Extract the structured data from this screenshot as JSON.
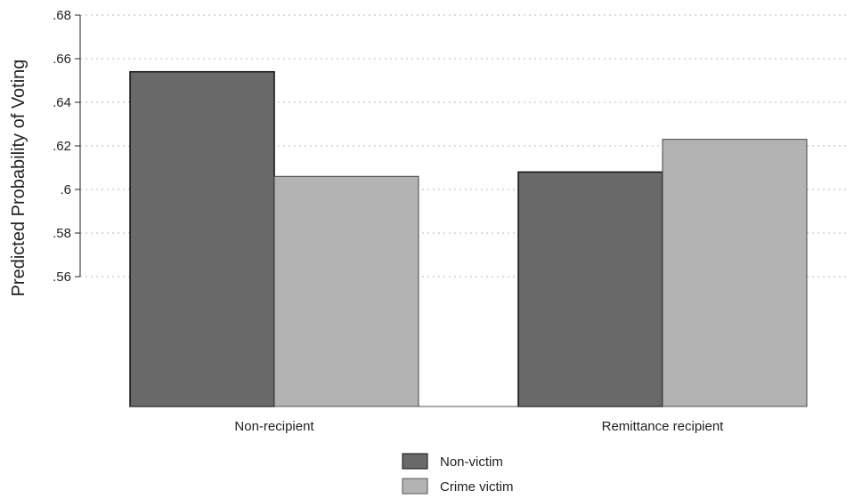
{
  "chart_data": {
    "type": "bar",
    "title": "",
    "xlabel": "",
    "ylabel": "Predicted Probability of Voting",
    "categories": [
      "Non-recipient",
      "Remittance recipient"
    ],
    "series": [
      {
        "name": "Non-victim",
        "values": [
          0.654,
          0.608
        ],
        "color": "#696969"
      },
      {
        "name": "Crime victim",
        "values": [
          0.606,
          0.623
        ],
        "color": "#b3b3b3"
      }
    ],
    "ylim": [
      0.56,
      0.68
    ],
    "yticks": [
      0.56,
      0.58,
      0.6,
      0.62,
      0.64,
      0.66,
      0.68
    ],
    "ytick_labels": [
      ".56",
      ".58",
      ".6",
      ".62",
      ".64",
      ".66",
      ".68"
    ],
    "grid": true,
    "legend_position": "bottom-center"
  }
}
